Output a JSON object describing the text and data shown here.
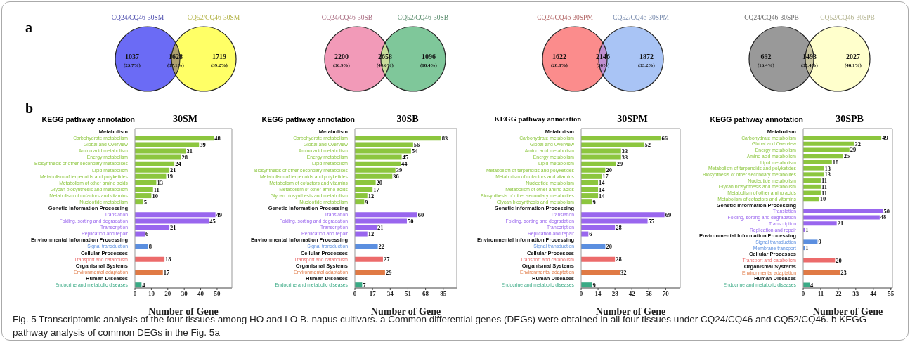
{
  "chart_data": [
    {
      "type": "other",
      "title": "a",
      "annotations": [
        "CQ24/CQ46-30SM",
        "CQ52/CQ46-30SM",
        "(23.7%)",
        "(37.1%)",
        "(39.2%)"
      ],
      "categories": [
        null,
        null,
        null
      ],
      "values": [
        1037,
        1628,
        1719
      ],
      "data_labels": true,
      "colors": [
        "#6b6bf5",
        "#aea06e",
        "#ffff66"
      ]
    },
    {
      "type": "other",
      "annotations": [
        "CQ24/CQ46-30SB",
        "CQ52/CQ46-30SB",
        "(36.9%)",
        "(44.6%)",
        "(18.4%)"
      ],
      "categories": [
        null,
        null,
        null
      ],
      "values": [
        2200,
        2658,
        1096
      ],
      "data_labels": true,
      "colors": [
        "#f29ab8",
        "#c8dc9a",
        "#7fc79a"
      ]
    },
    {
      "type": "other",
      "annotations": [
        "CQ24/CQ46-30SPM",
        "CQ52/CQ46-30SPM",
        "(28.8%)",
        "(38%)",
        "(33.2%)"
      ],
      "categories": [
        null,
        null,
        null
      ],
      "values": [
        1622,
        2146,
        1872
      ],
      "data_labels": true,
      "colors": [
        "#fb8c8c",
        "#c08fd0",
        "#a9c4f5"
      ]
    },
    {
      "type": "other",
      "annotations": [
        "CQ24/CQ46-30SPB",
        "CQ52/CQ46-30SPB",
        "(16.4%)",
        "(35.4%)",
        "(48.1%)"
      ],
      "categories": [
        null,
        null,
        null
      ],
      "values": [
        692,
        1493,
        2027
      ],
      "data_labels": true,
      "colors": [
        "#999999",
        "#c8c4a0",
        "#ffffcc"
      ]
    },
    {
      "type": "bar",
      "orientation": "horizontal",
      "title": "30SM",
      "ylabel": "KEGG pathway annotation",
      "xlabel": "Number of Gene",
      "annotations": [
        "b"
      ],
      "data_labels": true,
      "xlim": [
        0,
        59
      ],
      "xticks": [
        0,
        10,
        20,
        30,
        40,
        50
      ],
      "categories": [
        "Metabolism",
        "Carbohydrate metabolism",
        "Global and Overview",
        "Amino acid metabolism",
        "Energy metabolism",
        "Biosynthesis of other secondary metabolites",
        "Lipid metabolism",
        "Metabolism of terpenoids and polyketides",
        "Metabolism of other amino acids",
        "Glycan biosynthesis and metabolism",
        "Metabolism of cofactors and vitamins",
        "Nucleotide metabolism",
        "Genetic Information Processing",
        "Translation",
        "Folding, sorting and degradation",
        "Transcription",
        "Replication and repair",
        "Environmental Information Processing",
        "Signal transduction",
        "Cellular Processes",
        "Transport and catabolism",
        "Organismal Systems",
        "Environmental adaptation",
        "Human Diseases",
        "Endocrine and metabolic diseases"
      ],
      "values": [
        null,
        48,
        39,
        31,
        28,
        24,
        21,
        19,
        13,
        11,
        10,
        5,
        null,
        49,
        45,
        21,
        6,
        null,
        8,
        null,
        18,
        null,
        17,
        null,
        4
      ],
      "colors": [
        null,
        "#8cc63e",
        "#8cc63e",
        "#8cc63e",
        "#8cc63e",
        "#8cc63e",
        "#8cc63e",
        "#8cc63e",
        "#8cc63e",
        "#8cc63e",
        "#8cc63e",
        "#8cc63e",
        null,
        "#9966ee",
        "#9966ee",
        "#9966ee",
        "#9966ee",
        null,
        "#5b8fe0",
        null,
        "#ec6b6b",
        null,
        "#e07a45",
        null,
        "#3aaa85"
      ]
    },
    {
      "type": "bar",
      "orientation": "horizontal",
      "title": "30SB",
      "ylabel": "KEGG pathway annotation",
      "xlabel": "Number of Gene",
      "data_labels": true,
      "xlim": [
        0,
        98
      ],
      "xticks": [
        0,
        17,
        34,
        51,
        68,
        85
      ],
      "categories": [
        "Metabolism",
        "Carbohydrate metabolism",
        "Global and Overview",
        "Amino acid metabolism",
        "Energy metabolism",
        "Lipid metabolism",
        "Biosynthesis of other secondary metabolites",
        "Metabolism of terpenoids and polyketides",
        "Metabolism of cofactors and vitamins",
        "Metabolism of other amino acids",
        "Glycan biosynthesis and metabolism",
        "Nucleotide metabolism",
        "Genetic Information Processing",
        "Translation",
        "Folding, sorting and degradation",
        "Transcription",
        "Replication and repair",
        "Environmental Information Processing",
        "Signal transduction",
        "Cellular Processes",
        "Transport and catabolism",
        "Organismal Systems",
        "Environmental adaptation",
        "Human Diseases",
        "Endocrine and metabolic diseases"
      ],
      "values": [
        null,
        83,
        56,
        54,
        45,
        44,
        39,
        36,
        20,
        17,
        12,
        9,
        null,
        60,
        50,
        21,
        12,
        null,
        22,
        null,
        27,
        null,
        29,
        null,
        7
      ],
      "colors": [
        null,
        "#8cc63e",
        "#8cc63e",
        "#8cc63e",
        "#8cc63e",
        "#8cc63e",
        "#8cc63e",
        "#8cc63e",
        "#8cc63e",
        "#8cc63e",
        "#8cc63e",
        "#8cc63e",
        null,
        "#9966ee",
        "#9966ee",
        "#9966ee",
        "#9966ee",
        null,
        "#5b8fe0",
        null,
        "#ec6b6b",
        null,
        "#e07a45",
        null,
        "#3aaa85"
      ]
    },
    {
      "type": "bar",
      "orientation": "horizontal",
      "title": "30SPM",
      "ylabel": "KEGG pathway annotation",
      "xlabel": "Number of Gene",
      "data_labels": true,
      "xlim": [
        0,
        82
      ],
      "xticks": [
        0,
        14,
        28,
        42,
        56,
        70
      ],
      "categories": [
        "Metabolism",
        "Carbohydrate metabolism",
        "Global and Overview",
        "Amino acid metabolism",
        "Energy metabolism",
        "Lipid metabolism",
        "Metabolism of terpenoids and polyketides",
        "Metabolism of cofactors and vitamins",
        "Nucleotide metabolism",
        "Metabolism of other amino acids",
        "Biosynthesis of other secondary metabolites",
        "Glycan biosynthesis and metabolism",
        "Genetic Information Processing",
        "Translation",
        "Folding, sorting and degradation",
        "Transcription",
        "Replication and repair",
        "Environmental Information Processing",
        "Signal transduction",
        "Cellular Processes",
        "Transport and catabolism",
        "Organismal Systems",
        "Environmental adaptation",
        "Human Diseases",
        "Endocrine and metabolic diseases"
      ],
      "values": [
        null,
        66,
        52,
        33,
        33,
        29,
        20,
        17,
        14,
        14,
        14,
        9,
        null,
        69,
        55,
        28,
        6,
        null,
        20,
        null,
        28,
        null,
        32,
        null,
        9
      ],
      "colors": [
        null,
        "#8cc63e",
        "#8cc63e",
        "#8cc63e",
        "#8cc63e",
        "#8cc63e",
        "#8cc63e",
        "#8cc63e",
        "#8cc63e",
        "#8cc63e",
        "#8cc63e",
        "#8cc63e",
        null,
        "#9966ee",
        "#9966ee",
        "#9966ee",
        "#9966ee",
        null,
        "#5b8fe0",
        null,
        "#ec6b6b",
        null,
        "#e07a45",
        null,
        "#3aaa85"
      ]
    },
    {
      "type": "bar",
      "orientation": "horizontal",
      "title": "30SPB",
      "ylabel": "KEGG pathway annotation",
      "xlabel": "Number of Gene",
      "annotations": [
        "Fig. 5  Transcriptomic analysis of the four tissues among HO and LO B. napus cultivars. a Common differential genes (DEGs) were obtained in all four tissues under CQ24/CQ46 and CQ52/CQ46. b KEGG pathway analysis of common DEGs in the Fig. 5a"
      ],
      "data_labels": true,
      "xlim": [
        0,
        56
      ],
      "xticks": [
        0,
        11,
        22,
        33,
        44,
        55
      ],
      "categories": [
        "Metabolism",
        "Carbohydrate metabolism",
        "Global and Overview",
        "Energy metabolism",
        "Amino acid metabolism",
        "Lipid metabolism",
        "Metabolism of terpenoids and polyketides",
        "Biosynthesis of other secondary metabolites",
        "Nucleotide metabolism",
        "Glycan biosynthesis and metabolism",
        "Metabolism of other amino acids",
        "Metabolism of cofactors and vitamins",
        "Genetic Information Processing",
        "Translation",
        "Folding, sorting and degradation",
        "Transcription",
        "Replication and repair",
        "Environmental Information Processing",
        "Signal transduction",
        "Membrane transport",
        "Cellular Processes",
        "Transport and catabolism",
        "Organismal Systems",
        "Environmental adaptation",
        "Human Diseases",
        "Endocrine and metabolic diseases"
      ],
      "values": [
        null,
        49,
        32,
        29,
        25,
        18,
        13,
        13,
        11,
        11,
        11,
        10,
        null,
        50,
        48,
        21,
        1,
        null,
        9,
        1,
        null,
        20,
        null,
        23,
        null,
        4
      ],
      "colors": [
        null,
        "#8cc63e",
        "#8cc63e",
        "#8cc63e",
        "#8cc63e",
        "#8cc63e",
        "#8cc63e",
        "#8cc63e",
        "#8cc63e",
        "#8cc63e",
        "#8cc63e",
        "#8cc63e",
        null,
        "#9966ee",
        "#9966ee",
        "#9966ee",
        "#9966ee",
        null,
        "#5b8fe0",
        "#5b8fe0",
        null,
        "#ec6b6b",
        null,
        "#e07a45",
        null,
        "#3aaa85"
      ]
    }
  ]
}
